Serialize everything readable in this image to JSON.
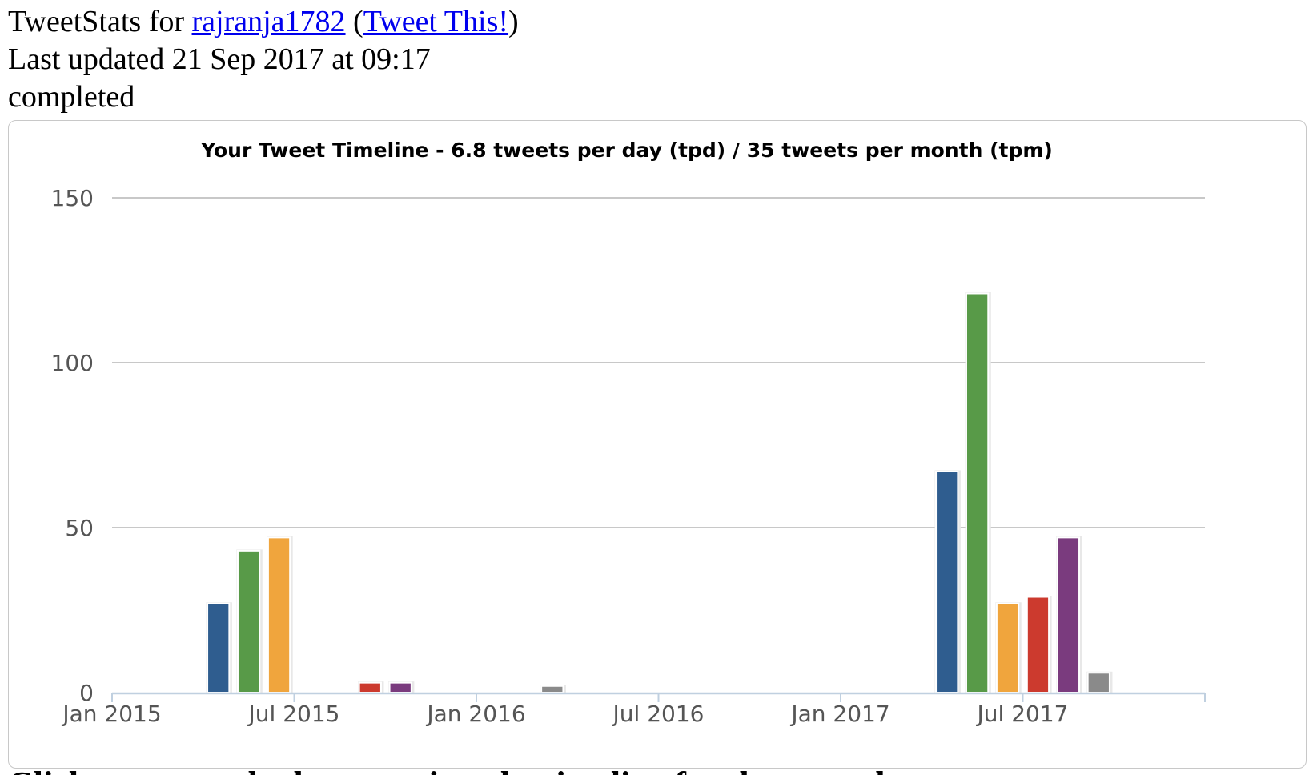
{
  "header": {
    "prefix": "TweetStats for ",
    "username": "rajranja1782",
    "open_paren": " (",
    "tweet_this": "Tweet This!",
    "close_paren": ")",
    "last_updated": "Last updated 21 Sep 2017 at 09:17",
    "status": "completed"
  },
  "footer_text": "Click on a month above to view the timeline for that month",
  "colors": {
    "blue": "#2f5d8f",
    "green": "#589a48",
    "orange": "#f0a53d",
    "red": "#cc3a2e",
    "purple": "#7a3b7e",
    "gray": "#8a8a8a",
    "grid": "#c8c8c8",
    "axis": "#c0d0e0"
  },
  "chart_data": {
    "type": "bar",
    "title": "Your Tweet Timeline - 6.8 tweets per day (tpd) / 35 tweets per month (tpm)",
    "xlabel": "",
    "ylabel": "",
    "ylim": [
      0,
      150
    ],
    "yticks": [
      0,
      50,
      100,
      150
    ],
    "xlim": [
      "2015-01",
      "2018-01"
    ],
    "xticks": [
      {
        "label": "Jan 2015",
        "date": "2015-01"
      },
      {
        "label": "Jul 2015",
        "date": "2015-07"
      },
      {
        "label": "Jan 2016",
        "date": "2016-01"
      },
      {
        "label": "Jul 2016",
        "date": "2016-07"
      },
      {
        "label": "Jan 2017",
        "date": "2017-01"
      },
      {
        "label": "Jul 2017",
        "date": "2017-07"
      }
    ],
    "grid": true,
    "legend": "none",
    "bars": [
      {
        "month": "2015-04",
        "value": 27,
        "color": "blue"
      },
      {
        "month": "2015-05",
        "value": 43,
        "color": "green"
      },
      {
        "month": "2015-06",
        "value": 47,
        "color": "orange"
      },
      {
        "month": "2015-09",
        "value": 3,
        "color": "red"
      },
      {
        "month": "2015-10",
        "value": 3,
        "color": "purple"
      },
      {
        "month": "2016-03",
        "value": 2,
        "color": "gray"
      },
      {
        "month": "2017-04",
        "value": 67,
        "color": "blue"
      },
      {
        "month": "2017-05",
        "value": 121,
        "color": "green"
      },
      {
        "month": "2017-06",
        "value": 27,
        "color": "orange"
      },
      {
        "month": "2017-07",
        "value": 29,
        "color": "red"
      },
      {
        "month": "2017-08",
        "value": 47,
        "color": "purple"
      },
      {
        "month": "2017-09",
        "value": 6,
        "color": "gray"
      }
    ]
  }
}
